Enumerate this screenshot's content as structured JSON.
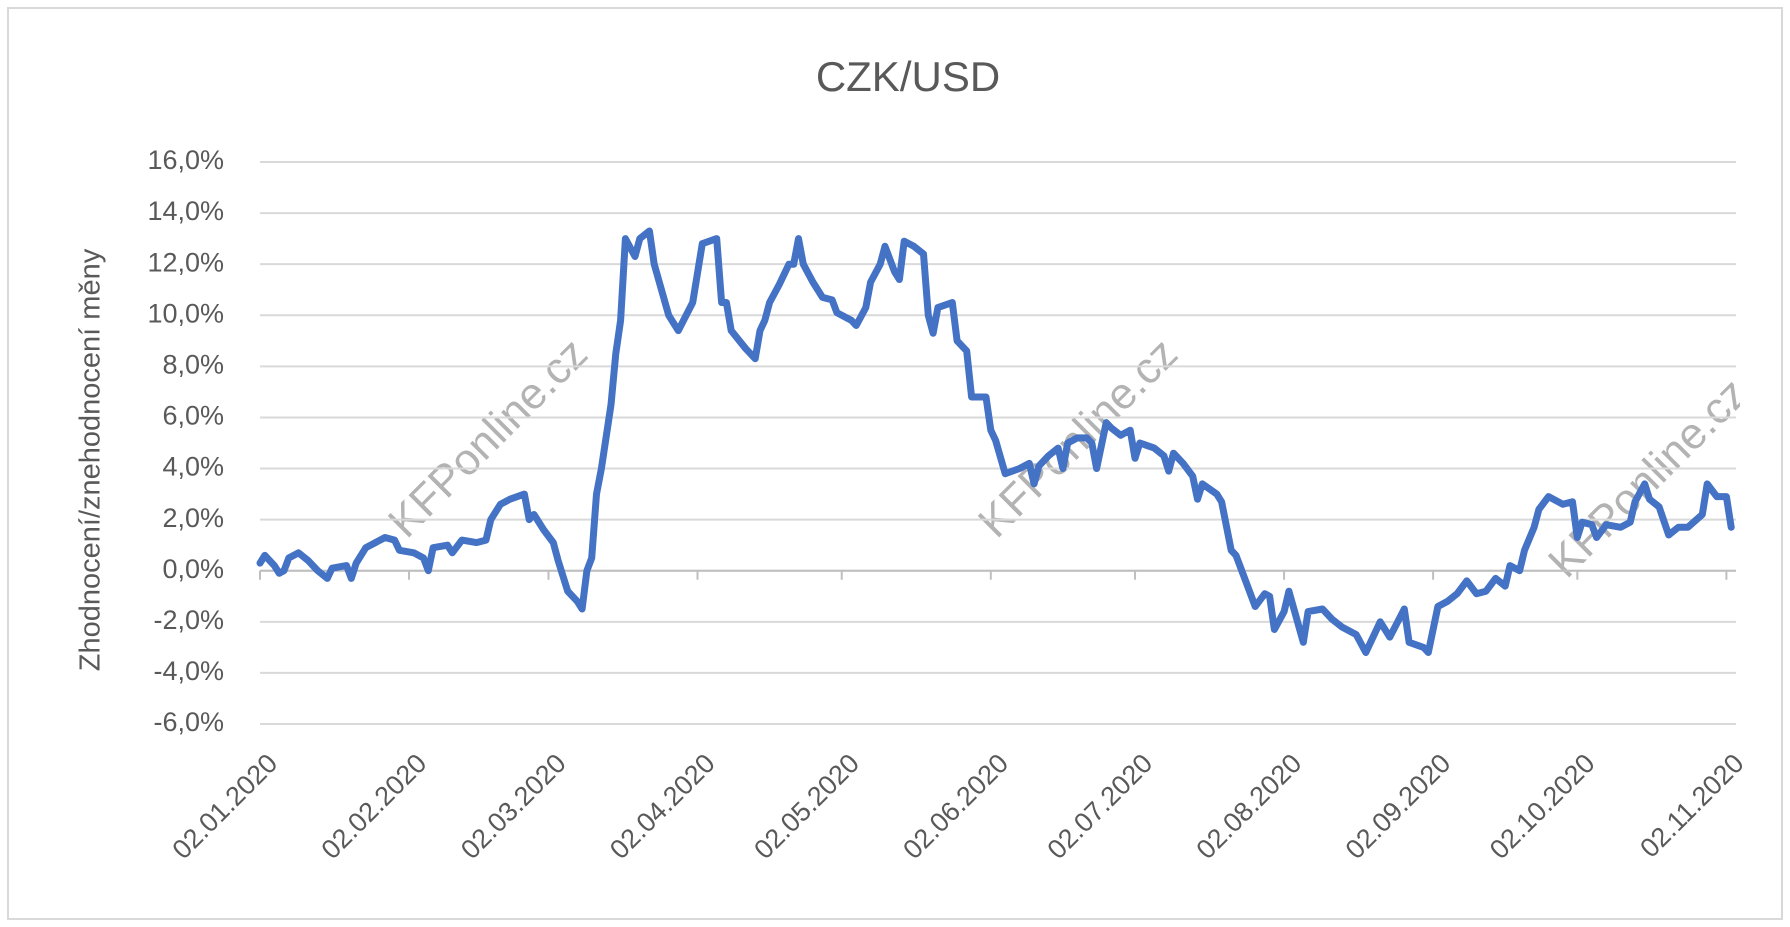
{
  "chart_data": {
    "type": "line",
    "title": "CZK/USD",
    "y_label": "Zhodnocení/znehodnocení měny",
    "watermark": "KFPonline.cz",
    "x": [
      "2020-01-02",
      "2020-01-03",
      "2020-01-05",
      "2020-01-06",
      "2020-01-07",
      "2020-01-08",
      "2020-01-10",
      "2020-01-12",
      "2020-01-14",
      "2020-01-16",
      "2020-01-17",
      "2020-01-20",
      "2020-01-21",
      "2020-01-22",
      "2020-01-24",
      "2020-01-26",
      "2020-01-28",
      "2020-01-30",
      "2020-01-31",
      "2020-02-03",
      "2020-02-05",
      "2020-02-06",
      "2020-02-07",
      "2020-02-10",
      "2020-02-11",
      "2020-02-13",
      "2020-02-16",
      "2020-02-18",
      "2020-02-19",
      "2020-02-21",
      "2020-02-23",
      "2020-02-26",
      "2020-02-27",
      "2020-02-28",
      "2020-03-01",
      "2020-03-03",
      "2020-03-04",
      "2020-03-06",
      "2020-03-08",
      "2020-03-09",
      "2020-03-10",
      "2020-03-11",
      "2020-03-12",
      "2020-03-13",
      "2020-03-15",
      "2020-03-16",
      "2020-03-17",
      "2020-03-18",
      "2020-03-20",
      "2020-03-21",
      "2020-03-23",
      "2020-03-24",
      "2020-03-27",
      "2020-03-29",
      "2020-04-01",
      "2020-04-03",
      "2020-04-06",
      "2020-04-07",
      "2020-04-08",
      "2020-04-09",
      "2020-04-12",
      "2020-04-14",
      "2020-04-15",
      "2020-04-16",
      "2020-04-17",
      "2020-04-19",
      "2020-04-21",
      "2020-04-22",
      "2020-04-23",
      "2020-04-24",
      "2020-04-26",
      "2020-04-28",
      "2020-04-30",
      "2020-05-01",
      "2020-05-04",
      "2020-05-05",
      "2020-05-07",
      "2020-05-08",
      "2020-05-10",
      "2020-05-11",
      "2020-05-13",
      "2020-05-14",
      "2020-05-15",
      "2020-05-17",
      "2020-05-19",
      "2020-05-20",
      "2020-05-21",
      "2020-05-22",
      "2020-05-25",
      "2020-05-26",
      "2020-05-28",
      "2020-05-29",
      "2020-06-01",
      "2020-06-02",
      "2020-06-03",
      "2020-06-05",
      "2020-06-08",
      "2020-06-10",
      "2020-06-11",
      "2020-06-12",
      "2020-06-14",
      "2020-06-16",
      "2020-06-17",
      "2020-06-18",
      "2020-06-20",
      "2020-06-22",
      "2020-06-23",
      "2020-06-24",
      "2020-06-26",
      "2020-06-27",
      "2020-06-29",
      "2020-07-01",
      "2020-07-02",
      "2020-07-03",
      "2020-07-06",
      "2020-07-08",
      "2020-07-09",
      "2020-07-10",
      "2020-07-12",
      "2020-07-14",
      "2020-07-15",
      "2020-07-16",
      "2020-07-19",
      "2020-07-20",
      "2020-07-22",
      "2020-07-23",
      "2020-07-25",
      "2020-07-27",
      "2020-07-29",
      "2020-07-30",
      "2020-07-31",
      "2020-08-02",
      "2020-08-03",
      "2020-08-06",
      "2020-08-07",
      "2020-08-10",
      "2020-08-12",
      "2020-08-14",
      "2020-08-17",
      "2020-08-19",
      "2020-08-22",
      "2020-08-24",
      "2020-08-27",
      "2020-08-28",
      "2020-08-31",
      "2020-09-01",
      "2020-09-03",
      "2020-09-05",
      "2020-09-07",
      "2020-09-09",
      "2020-09-11",
      "2020-09-13",
      "2020-09-15",
      "2020-09-17",
      "2020-09-18",
      "2020-09-20",
      "2020-09-21",
      "2020-09-23",
      "2020-09-24",
      "2020-09-26",
      "2020-09-29",
      "2020-10-01",
      "2020-10-02",
      "2020-10-03",
      "2020-10-05",
      "2020-10-06",
      "2020-10-08",
      "2020-10-11",
      "2020-10-13",
      "2020-10-14",
      "2020-10-16",
      "2020-10-17",
      "2020-10-19",
      "2020-10-21",
      "2020-10-23",
      "2020-10-25",
      "2020-10-28",
      "2020-10-29",
      "2020-10-31",
      "2020-11-02",
      "2020-11-03"
    ],
    "series": [
      {
        "name": "CZK/USD",
        "color": "#4472c4",
        "values": [
          0.3,
          0.6,
          0.2,
          -0.1,
          0.0,
          0.5,
          0.7,
          0.4,
          0.0,
          -0.3,
          0.1,
          0.2,
          -0.3,
          0.3,
          0.9,
          1.1,
          1.3,
          1.2,
          0.8,
          0.7,
          0.5,
          0.0,
          0.9,
          1.0,
          0.7,
          1.2,
          1.1,
          1.2,
          2.0,
          2.6,
          2.8,
          3.0,
          2.0,
          2.2,
          1.6,
          1.1,
          0.4,
          -0.8,
          -1.2,
          -1.5,
          0.0,
          0.5,
          3.0,
          4.0,
          6.5,
          8.5,
          9.8,
          13.0,
          12.3,
          13.0,
          13.3,
          12.0,
          10.0,
          9.4,
          10.5,
          12.8,
          13.0,
          10.5,
          10.5,
          9.4,
          8.7,
          8.3,
          9.4,
          9.8,
          10.5,
          11.2,
          12.0,
          12.0,
          13.0,
          12.0,
          11.3,
          10.7,
          10.6,
          10.1,
          9.8,
          9.6,
          10.3,
          11.3,
          12.0,
          12.7,
          11.7,
          11.4,
          12.9,
          12.7,
          12.4,
          10.0,
          9.3,
          10.3,
          10.5,
          9.0,
          8.6,
          6.8,
          6.8,
          5.5,
          5.1,
          3.8,
          4.0,
          4.2,
          3.4,
          4.1,
          4.5,
          4.8,
          4.0,
          5.0,
          5.2,
          5.2,
          5.0,
          4.0,
          5.8,
          5.6,
          5.3,
          5.5,
          4.4,
          5.0,
          4.8,
          4.5,
          3.9,
          4.6,
          4.2,
          3.7,
          2.8,
          3.4,
          3.0,
          2.7,
          0.8,
          0.6,
          -0.4,
          -1.4,
          -0.9,
          -1.0,
          -2.3,
          -1.6,
          -0.8,
          -2.8,
          -1.6,
          -1.5,
          -1.9,
          -2.2,
          -2.5,
          -3.2,
          -2.0,
          -2.6,
          -1.5,
          -2.8,
          -3.0,
          -3.2,
          -1.4,
          -1.2,
          -0.9,
          -0.4,
          -0.9,
          -0.8,
          -0.3,
          -0.6,
          0.2,
          0.0,
          0.8,
          1.7,
          2.4,
          2.9,
          2.6,
          2.7,
          1.3,
          1.9,
          1.8,
          1.3,
          1.8,
          1.7,
          1.9,
          2.7,
          3.4,
          2.8,
          2.5,
          1.4,
          1.7,
          1.7,
          2.2,
          3.4,
          2.9,
          2.9,
          1.7
        ]
      }
    ],
    "xlim": [
      "2020-01-02",
      "2020-11-04"
    ],
    "xticks": [
      {
        "value": "2020-01-02",
        "label": "02.01.2020"
      },
      {
        "value": "2020-02-02",
        "label": "02.02.2020"
      },
      {
        "value": "2020-03-02",
        "label": "02.03.2020"
      },
      {
        "value": "2020-04-02",
        "label": "02.04.2020"
      },
      {
        "value": "2020-05-02",
        "label": "02.05.2020"
      },
      {
        "value": "2020-06-02",
        "label": "02.06.2020"
      },
      {
        "value": "2020-07-02",
        "label": "02.07.2020"
      },
      {
        "value": "2020-08-02",
        "label": "02.08.2020"
      },
      {
        "value": "2020-09-02",
        "label": "02.09.2020"
      },
      {
        "value": "2020-10-02",
        "label": "02.10.2020"
      },
      {
        "value": "2020-11-02",
        "label": "02.11.2020"
      }
    ],
    "ylim": [
      -6,
      16
    ],
    "yticks": [
      {
        "value": -6,
        "label": "-6,0%"
      },
      {
        "value": -4,
        "label": "-4,0%"
      },
      {
        "value": -2,
        "label": "-2,0%"
      },
      {
        "value": 0,
        "label": "0,0%"
      },
      {
        "value": 2,
        "label": "2,0%"
      },
      {
        "value": 4,
        "label": "4,0%"
      },
      {
        "value": 6,
        "label": "6,0%"
      },
      {
        "value": 8,
        "label": "8,0%"
      },
      {
        "value": 10,
        "label": "10,0%"
      },
      {
        "value": 12,
        "label": "12,0%"
      },
      {
        "value": 14,
        "label": "14,0%"
      },
      {
        "value": 16,
        "label": "16,0%"
      }
    ],
    "grid": true
  }
}
